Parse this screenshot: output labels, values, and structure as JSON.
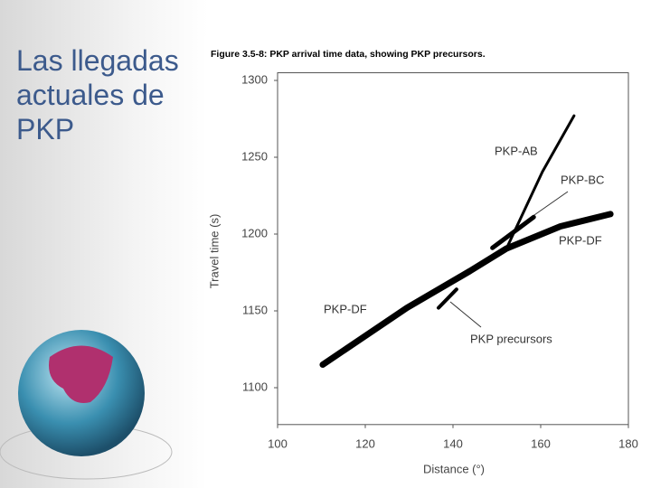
{
  "slide_title": "Las llegadas actuales de PKP",
  "chart_data": {
    "type": "line",
    "title": "Figure 3.5-8: PKP arrival time data, showing PKP precursors.",
    "xlabel": "Distance (°)",
    "ylabel": "Travel time (s)",
    "xlim": [
      100,
      180
    ],
    "ylim": [
      1076,
      1305
    ],
    "xticks": [
      100,
      120,
      140,
      160,
      180
    ],
    "yticks": [
      1100,
      1150,
      1200,
      1250,
      1300
    ],
    "series": [
      {
        "name": "PKP-DF",
        "color": "#000000",
        "x": [
          110.3,
          129.5,
          143.9,
          152.2,
          164.5,
          175.9
        ],
        "values": [
          1115,
          1152,
          1176,
          1190.6,
          1205,
          1213
        ]
      },
      {
        "name": "PKP-AB",
        "color": "#000000",
        "x": [
          152.2,
          160.4,
          167.6
        ],
        "values": [
          1190.6,
          1240.6,
          1277
        ]
      },
      {
        "name": "PKP-BC",
        "color": "#000000",
        "x": [
          149,
          158.4
        ],
        "values": [
          1191,
          1211
        ]
      },
      {
        "name": "PKP precursors",
        "color": "#000000",
        "x": [
          136.7,
          140.8
        ],
        "values": [
          1152,
          1164
        ]
      }
    ]
  }
}
